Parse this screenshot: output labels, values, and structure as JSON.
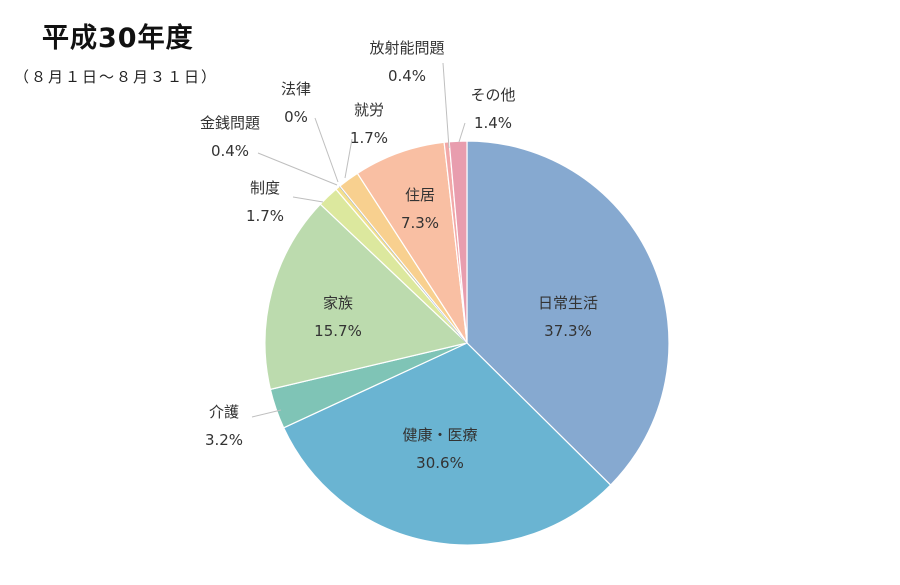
{
  "chart": {
    "title": "平成30年度",
    "subtitle": "（８月１日～８月３１日）"
  },
  "chart_data": {
    "type": "pie",
    "title": "平成30年度",
    "subtitle": "（８月１日～８月３１日）",
    "slices": [
      {
        "name": "日常生活",
        "value": 37.3,
        "label": "37.3%",
        "color": "#86A9D0"
      },
      {
        "name": "健康・医療",
        "value": 30.6,
        "label": "30.6%",
        "color": "#6AB4D2"
      },
      {
        "name": "介護",
        "value": 3.2,
        "label": "3.2%",
        "color": "#7FC4B6"
      },
      {
        "name": "家族",
        "value": 15.7,
        "label": "15.7%",
        "color": "#BCDBAE"
      },
      {
        "name": "制度",
        "value": 1.7,
        "label": "1.7%",
        "color": "#DCE89E"
      },
      {
        "name": "金銭問題",
        "value": 0.4,
        "label": "0.4%",
        "color": "#F2E08E"
      },
      {
        "name": "法律",
        "value": 0,
        "label": "0%",
        "color": "#8F9FD0"
      },
      {
        "name": "就労",
        "value": 1.7,
        "label": "1.7%",
        "color": "#F8D08F"
      },
      {
        "name": "住居",
        "value": 7.3,
        "label": "7.3%",
        "color": "#F9BFA3"
      },
      {
        "name": "放射能問題",
        "value": 0.4,
        "label": "0.4%",
        "color": "#F2A8A8"
      },
      {
        "name": "その他",
        "value": 1.4,
        "label": "1.4%",
        "color": "#E89DAE"
      }
    ],
    "start": "12 o'clock, clockwise",
    "legend": "none"
  }
}
